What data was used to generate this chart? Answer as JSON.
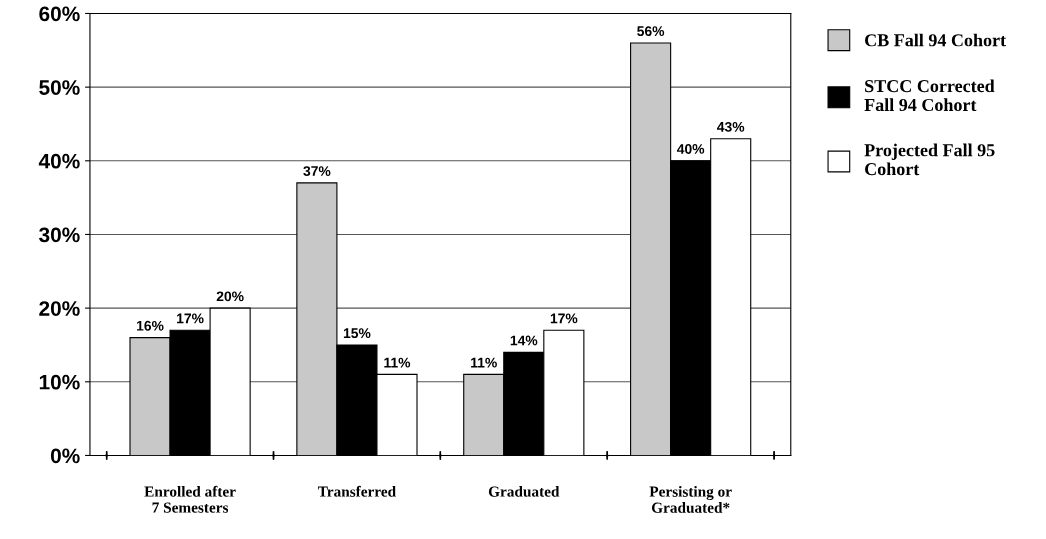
{
  "chart_data": {
    "type": "bar",
    "categories": [
      "Enrolled after\n7 Semesters",
      "Transferred",
      "Graduated",
      "Persisting or\nGraduated*"
    ],
    "series": [
      {
        "name": "CB Fall 94 Cohort",
        "color": "#c8c8c8",
        "values": [
          16,
          37,
          11,
          56
        ],
        "value_labels": [
          "16%",
          "37%",
          "11%",
          "56%"
        ]
      },
      {
        "name": "STCC Corrected\nFall 94 Cohort",
        "color": "#000000",
        "values": [
          17,
          15,
          14,
          40
        ],
        "value_labels": [
          "17%",
          "15%",
          "14%",
          "40%"
        ]
      },
      {
        "name": "Projected Fall 95\nCohort",
        "color": "#ffffff",
        "values": [
          20,
          11,
          17,
          43
        ],
        "value_labels": [
          "20%",
          "11%",
          "17%",
          "43%"
        ]
      }
    ],
    "ylim": [
      0,
      60
    ],
    "yticks": [
      {
        "value": 0,
        "label": "0%"
      },
      {
        "value": 10,
        "label": "10%"
      },
      {
        "value": 20,
        "label": "20%"
      },
      {
        "value": 30,
        "label": "30%"
      },
      {
        "value": 40,
        "label": "40%"
      },
      {
        "value": 50,
        "label": "50%"
      },
      {
        "value": 60,
        "label": "60%"
      }
    ],
    "grid": "y",
    "legend": "right"
  }
}
